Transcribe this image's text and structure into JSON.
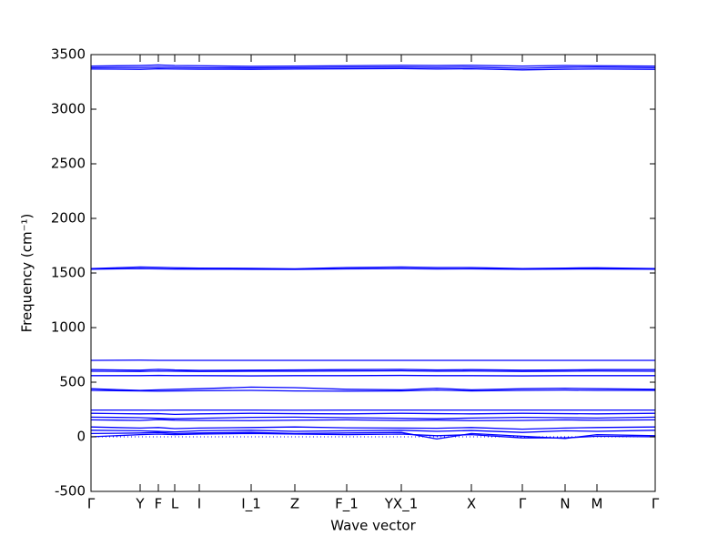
{
  "chart_data": {
    "type": "line",
    "xlabel": "Wave vector",
    "ylabel": "Frequency (cm⁻¹)",
    "x": [
      0,
      0.54,
      0.74,
      0.92,
      1.19,
      1.76,
      2.24,
      2.81,
      3.41,
      3.8,
      4.18,
      4.74,
      5.21,
      5.56,
      6.2
    ],
    "xlim": [
      0,
      6.2
    ],
    "xticks": [
      {
        "value": 0,
        "label": "Γ"
      },
      {
        "value": 0.54,
        "label": "Y"
      },
      {
        "value": 0.74,
        "label": "F"
      },
      {
        "value": 0.92,
        "label": "L"
      },
      {
        "value": 1.19,
        "label": "I"
      },
      {
        "value": 1.76,
        "label": "I_1"
      },
      {
        "value": 2.24,
        "label": "Z"
      },
      {
        "value": 2.81,
        "label": "F_1"
      },
      {
        "value": 3.41,
        "label": "YX_1"
      },
      {
        "value": 4.18,
        "label": "X"
      },
      {
        "value": 4.74,
        "label": "Γ"
      },
      {
        "value": 5.21,
        "label": "N"
      },
      {
        "value": 5.56,
        "label": "M"
      },
      {
        "value": 6.2,
        "label": "Γ"
      }
    ],
    "ylim": [
      -500,
      3500
    ],
    "yticks": [
      -500,
      0,
      500,
      1000,
      1500,
      2000,
      2500,
      3000,
      3500
    ],
    "reference_line": 0,
    "color": "#0000ff",
    "series": [
      {
        "values": [
          3395,
          3400,
          3405,
          3400,
          3398,
          3392,
          3395,
          3398,
          3402,
          3400,
          3402,
          3395,
          3400,
          3398,
          3395
        ]
      },
      {
        "values": [
          3380,
          3382,
          3385,
          3383,
          3380,
          3378,
          3380,
          3384,
          3386,
          3383,
          3385,
          3375,
          3384,
          3385,
          3380
        ]
      },
      {
        "values": [
          3368,
          3365,
          3370,
          3368,
          3366,
          3365,
          3368,
          3370,
          3372,
          3368,
          3370,
          3360,
          3366,
          3368,
          3365
        ]
      },
      {
        "values": [
          1540,
          1555,
          1552,
          1548,
          1545,
          1542,
          1538,
          1550,
          1555,
          1550,
          1550,
          1540,
          1545,
          1548,
          1540
        ]
      },
      {
        "values": [
          1535,
          1540,
          1538,
          1536,
          1535,
          1534,
          1532,
          1538,
          1540,
          1537,
          1538,
          1534,
          1536,
          1537,
          1535
        ]
      },
      {
        "values": [
          700,
          702,
          700,
          700,
          700,
          700,
          700,
          700,
          700,
          700,
          700,
          700,
          700,
          700,
          700
        ]
      },
      {
        "values": [
          615,
          610,
          618,
          612,
          608,
          610,
          612,
          615,
          618,
          612,
          615,
          610,
          612,
          615,
          615
        ]
      },
      {
        "values": [
          600,
          598,
          602,
          600,
          598,
          600,
          600,
          602,
          604,
          600,
          602,
          598,
          600,
          602,
          600
        ]
      },
      {
        "values": [
          560,
          560,
          562,
          560,
          560,
          558,
          560,
          560,
          562,
          560,
          560,
          558,
          560,
          560,
          560
        ]
      },
      {
        "values": [
          440,
          425,
          430,
          435,
          440,
          455,
          450,
          435,
          430,
          445,
          430,
          440,
          445,
          440,
          435
        ]
      },
      {
        "values": [
          425,
          420,
          418,
          420,
          422,
          425,
          420,
          418,
          420,
          428,
          420,
          425,
          428,
          425,
          425
        ]
      },
      {
        "values": [
          245,
          245,
          244,
          245,
          245,
          245,
          244,
          245,
          245,
          245,
          245,
          245,
          245,
          245,
          245
        ]
      },
      {
        "values": [
          215,
          210,
          212,
          205,
          210,
          215,
          212,
          210,
          215,
          212,
          210,
          215,
          212,
          210,
          215
        ]
      },
      {
        "values": [
          180,
          175,
          170,
          165,
          170,
          178,
          180,
          175,
          170,
          165,
          172,
          178,
          175,
          172,
          180
        ]
      },
      {
        "values": [
          155,
          150,
          158,
          152,
          150,
          148,
          152,
          155,
          150,
          152,
          148,
          150,
          155,
          152,
          155
        ]
      },
      {
        "values": [
          90,
          80,
          85,
          75,
          80,
          85,
          90,
          82,
          80,
          78,
          85,
          70,
          80,
          85,
          90
        ]
      },
      {
        "values": [
          60,
          55,
          50,
          45,
          55,
          60,
          50,
          55,
          60,
          50,
          58,
          40,
          55,
          50,
          60
        ]
      },
      {
        "values": [
          30,
          35,
          40,
          30,
          35,
          40,
          30,
          35,
          40,
          -20,
          30,
          5,
          -15,
          20,
          10
        ]
      },
      {
        "values": [
          0,
          20,
          25,
          20,
          25,
          30,
          25,
          20,
          25,
          10,
          20,
          -10,
          -10,
          5,
          0
        ]
      }
    ]
  }
}
